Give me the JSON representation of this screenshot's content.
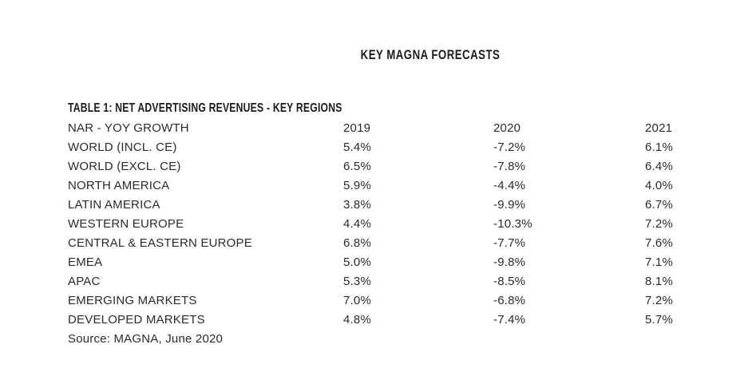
{
  "page": {
    "title": "KEY MAGNA FORECASTS",
    "background_color": "#ffffff",
    "text_color": "#2b2b2b",
    "heading_color": "#1b1b1b"
  },
  "table": {
    "caption": "TABLE 1: NET ADVERTISING REVENUES - KEY REGIONS",
    "header": [
      "NAR - YOY GROWTH",
      "2019",
      "2020",
      "2021"
    ],
    "rows": [
      [
        "WORLD (INCL. CE)",
        "5.4%",
        "-7.2%",
        "6.1%"
      ],
      [
        "WORLD (EXCL. CE)",
        "6.5%",
        "-7.8%",
        "6.4%"
      ],
      [
        "NORTH AMERICA",
        "5.9%",
        "-4.4%",
        "4.0%"
      ],
      [
        "LATIN AMERICA",
        "3.8%",
        "-9.9%",
        "6.7%"
      ],
      [
        "WESTERN EUROPE",
        "4.4%",
        "-10.3%",
        "7.2%"
      ],
      [
        "CENTRAL & EASTERN EUROPE",
        "6.8%",
        "-7.7%",
        "7.6%"
      ],
      [
        "EMEA",
        "5.0%",
        "-9.8%",
        "7.1%"
      ],
      [
        "APAC",
        "5.3%",
        "-8.5%",
        "8.1%"
      ],
      [
        "EMERGING MARKETS",
        "7.0%",
        "-6.8%",
        "7.2%"
      ],
      [
        "DEVELOPED MARKETS",
        "4.8%",
        "-7.4%",
        "5.7%"
      ]
    ],
    "source": "Source: MAGNA, June 2020"
  },
  "chart_data": {
    "type": "table",
    "title": "KEY MAGNA FORECASTS",
    "subtitle": "TABLE 1: NET ADVERTISING REVENUES - KEY REGIONS",
    "categories": [
      "2019",
      "2020",
      "2021"
    ],
    "series": [
      {
        "name": "WORLD (INCL. CE)",
        "values": [
          5.4,
          -7.2,
          6.1
        ]
      },
      {
        "name": "WORLD (EXCL. CE)",
        "values": [
          6.5,
          -7.8,
          6.4
        ]
      },
      {
        "name": "NORTH AMERICA",
        "values": [
          5.9,
          -4.4,
          4.0
        ]
      },
      {
        "name": "LATIN AMERICA",
        "values": [
          3.8,
          -9.9,
          6.7
        ]
      },
      {
        "name": "WESTERN EUROPE",
        "values": [
          4.4,
          -10.3,
          7.2
        ]
      },
      {
        "name": "CENTRAL & EASTERN EUROPE",
        "values": [
          6.8,
          -7.7,
          7.6
        ]
      },
      {
        "name": "EMEA",
        "values": [
          5.0,
          -9.8,
          7.1
        ]
      },
      {
        "name": "APAC",
        "values": [
          5.3,
          -8.5,
          8.1
        ]
      },
      {
        "name": "EMERGING MARKETS",
        "values": [
          7.0,
          -6.8,
          7.2
        ]
      },
      {
        "name": "DEVELOPED MARKETS",
        "values": [
          4.8,
          -7.4,
          5.7
        ]
      }
    ],
    "value_unit": "% YoY growth",
    "source": "Source: MAGNA, June 2020"
  }
}
